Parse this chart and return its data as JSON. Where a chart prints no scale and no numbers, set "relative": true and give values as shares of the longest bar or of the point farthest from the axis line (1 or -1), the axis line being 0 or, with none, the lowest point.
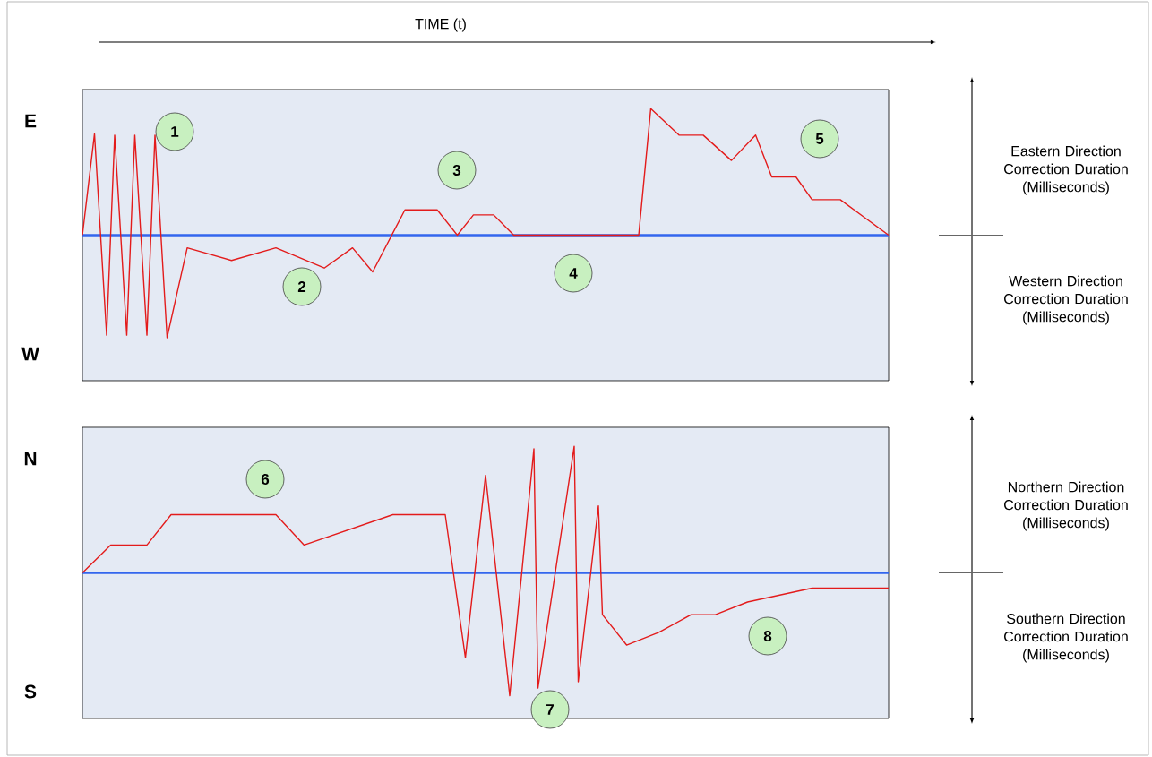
{
  "chart_data": [
    {
      "type": "line",
      "relative": true,
      "xlabel": "TIME (t)",
      "categories": [
        null,
        null,
        null,
        null,
        null,
        null,
        null,
        null,
        null,
        null,
        null,
        null,
        null,
        null,
        null,
        null,
        null,
        null,
        null,
        null,
        null,
        null,
        null,
        null,
        null,
        null,
        null,
        null,
        null,
        null,
        null,
        null,
        null,
        null,
        null,
        null,
        null,
        null,
        null,
        null,
        null,
        null,
        null,
        null,
        null,
        null,
        null,
        null,
        null,
        null,
        null,
        null,
        null,
        null,
        null,
        null,
        null,
        null,
        null,
        null,
        null,
        null,
        null,
        null,
        null,
        null,
        null,
        null,
        null,
        null,
        null,
        null,
        null,
        null,
        null,
        null,
        null,
        null,
        null,
        null,
        null,
        null,
        null,
        null,
        null,
        null,
        null,
        null,
        null,
        null,
        null,
        null,
        null,
        null,
        null,
        null,
        null,
        null,
        null,
        null,
        null,
        null,
        null,
        null,
        null,
        null,
        null,
        null,
        null,
        null,
        null,
        null,
        null,
        null,
        null,
        null,
        null,
        null,
        null,
        null,
        null,
        null,
        null,
        null,
        null,
        null,
        null,
        null,
        null,
        null,
        null,
        null,
        null,
        null,
        null,
        null,
        null,
        null,
        null,
        null,
        null,
        null,
        null,
        null,
        null,
        null,
        null,
        null,
        null,
        null,
        null,
        null,
        null,
        null,
        null,
        null,
        null,
        null,
        null,
        null,
        null,
        null,
        null,
        null,
        null,
        null,
        null,
        null,
        null,
        null,
        null,
        null,
        null,
        null,
        null,
        null,
        null,
        null,
        null,
        null,
        null,
        null,
        null,
        null,
        null,
        null,
        null,
        null,
        null,
        null,
        null,
        null,
        null,
        null,
        null,
        null,
        null,
        null,
        null,
        null,
        null
      ],
      "series": [
        {
          "color": "#e31b1b",
          "values": [
            0,
            null,
            null,
            0.8,
            null,
            null,
            -0.79,
            null,
            0.79,
            null,
            null,
            -0.79,
            null,
            0.79,
            null,
            null,
            -0.79,
            null,
            0.79,
            null,
            null,
            -0.81,
            null,
            null,
            null,
            null,
            -0.1,
            null,
            null,
            null,
            null,
            null,
            null,
            null,
            null,
            null,
            null,
            -0.2,
            null,
            null,
            null,
            null,
            null,
            null,
            null,
            null,
            null,
            null,
            -0.1,
            null,
            null,
            null,
            null,
            null,
            null,
            null,
            null,
            null,
            null,
            null,
            -0.26,
            null,
            null,
            null,
            null,
            null,
            null,
            -0.1,
            null,
            null,
            null,
            null,
            -0.29,
            null,
            null,
            null,
            null,
            null,
            null,
            null,
            0.2,
            null,
            null,
            null,
            null,
            null,
            null,
            null,
            0.2,
            null,
            null,
            null,
            null,
            0,
            null,
            null,
            null,
            0.16,
            null,
            null,
            null,
            null,
            0.16,
            null,
            null,
            null,
            null,
            0,
            null,
            null,
            null,
            null,
            null,
            null,
            null,
            null,
            null,
            null,
            null,
            null,
            null,
            null,
            null,
            null,
            null,
            null,
            null,
            null,
            null,
            null,
            null,
            null,
            null,
            null,
            null,
            null,
            null,
            null,
            0,
            null,
            null,
            1,
            null,
            null,
            null,
            null,
            null,
            null,
            0.79,
            null,
            null,
            null,
            null,
            null,
            0.79,
            null,
            null,
            null,
            null,
            null,
            null,
            0.59,
            null,
            null,
            null,
            null,
            null,
            0.79,
            null,
            null,
            null,
            0.46,
            null,
            null,
            null,
            null,
            null,
            0.46,
            null,
            null,
            null,
            0.28,
            null,
            null,
            null,
            null,
            null,
            null,
            0.28,
            null,
            null,
            null,
            null,
            null,
            0.14,
            null,
            null,
            null,
            null,
            null,
            0
          ]
        }
      ],
      "ref_lines": [
        {
          "axis": "y",
          "value": 0,
          "color": "#3366ee"
        }
      ],
      "annotations": [
        "1",
        "2",
        "3",
        "4",
        "5",
        "E",
        "W",
        "Eastern Direction Correction Duration (Milliseconds)",
        "Western Direction Correction Duration (Milliseconds)"
      ]
    },
    {
      "type": "line",
      "relative": true,
      "categories": [
        null,
        null,
        null,
        null,
        null,
        null,
        null,
        null,
        null,
        null,
        null,
        null,
        null,
        null,
        null,
        null,
        null,
        null,
        null,
        null,
        null,
        null,
        null,
        null,
        null,
        null,
        null,
        null,
        null,
        null,
        null,
        null,
        null,
        null,
        null,
        null,
        null,
        null,
        null,
        null,
        null,
        null,
        null,
        null,
        null,
        null,
        null,
        null,
        null,
        null,
        null,
        null,
        null,
        null,
        null,
        null,
        null,
        null,
        null,
        null,
        null,
        null,
        null,
        null,
        null,
        null,
        null,
        null,
        null,
        null,
        null,
        null,
        null,
        null,
        null,
        null,
        null,
        null,
        null,
        null,
        null,
        null,
        null,
        null,
        null,
        null,
        null,
        null,
        null,
        null,
        null,
        null,
        null,
        null,
        null,
        null,
        null,
        null,
        null,
        null,
        null,
        null,
        null,
        null,
        null,
        null,
        null,
        null,
        null,
        null,
        null,
        null,
        null,
        null,
        null,
        null,
        null,
        null,
        null,
        null,
        null,
        null,
        null,
        null,
        null,
        null,
        null,
        null,
        null,
        null,
        null,
        null,
        null,
        null,
        null,
        null,
        null,
        null,
        null,
        null,
        null,
        null,
        null,
        null,
        null,
        null,
        null,
        null,
        null,
        null,
        null,
        null,
        null,
        null,
        null,
        null,
        null,
        null,
        null,
        null,
        null,
        null,
        null,
        null,
        null,
        null,
        null,
        null,
        null,
        null,
        null,
        null,
        null,
        null,
        null,
        null,
        null,
        null,
        null,
        null,
        null,
        null,
        null,
        null,
        null,
        null,
        null,
        null,
        null,
        null,
        null,
        null,
        null,
        null,
        null,
        null,
        null,
        null,
        null,
        null,
        null
      ],
      "series": [
        {
          "color": "#e31b1b",
          "values": [
            0,
            null,
            null,
            null,
            null,
            null,
            null,
            0.22,
            null,
            null,
            null,
            null,
            null,
            null,
            null,
            null,
            0.22,
            null,
            null,
            null,
            null,
            null,
            0.46,
            null,
            null,
            null,
            null,
            null,
            null,
            null,
            null,
            null,
            null,
            null,
            null,
            null,
            null,
            null,
            null,
            null,
            null,
            null,
            null,
            null,
            null,
            null,
            null,
            null,
            0.46,
            null,
            null,
            null,
            null,
            null,
            null,
            0.22,
            null,
            null,
            null,
            null,
            null,
            null,
            null,
            null,
            null,
            null,
            null,
            null,
            null,
            null,
            null,
            null,
            null,
            null,
            null,
            null,
            null,
            0.46,
            null,
            null,
            null,
            null,
            null,
            null,
            null,
            null,
            null,
            null,
            null,
            null,
            0.46,
            null,
            null,
            null,
            null,
            -0.67,
            null,
            null,
            null,
            null,
            0.77,
            null,
            null,
            null,
            null,
            null,
            -0.97,
            null,
            null,
            null,
            null,
            null,
            0.98,
            -0.91,
            null,
            null,
            null,
            null,
            null,
            null,
            null,
            null,
            1,
            -0.86,
            null,
            null,
            null,
            null,
            0.53,
            -0.33,
            null,
            null,
            null,
            null,
            null,
            -0.57,
            null,
            null,
            null,
            null,
            null,
            null,
            null,
            -0.47,
            null,
            null,
            null,
            null,
            null,
            null,
            null,
            -0.33,
            null,
            null,
            null,
            null,
            null,
            -0.33,
            null,
            null,
            null,
            null,
            null,
            null,
            null,
            -0.23,
            null,
            null,
            null,
            null,
            null,
            null,
            null,
            null,
            null,
            null,
            null,
            null,
            null,
            null,
            null,
            -0.12,
            null,
            null,
            null,
            null,
            null,
            null,
            null,
            null,
            null,
            null,
            null,
            null,
            null,
            null,
            null,
            null,
            null,
            null,
            -0.12
          ]
        }
      ],
      "ref_lines": [
        {
          "axis": "y",
          "value": 0,
          "color": "#3366ee"
        }
      ],
      "annotations": [
        "6",
        "7",
        "8",
        "N",
        "S",
        "Northern  Direction Correction Duration (Milliseconds)",
        "Southern Direction Correction Duration (Milliseconds)"
      ]
    }
  ]
}
